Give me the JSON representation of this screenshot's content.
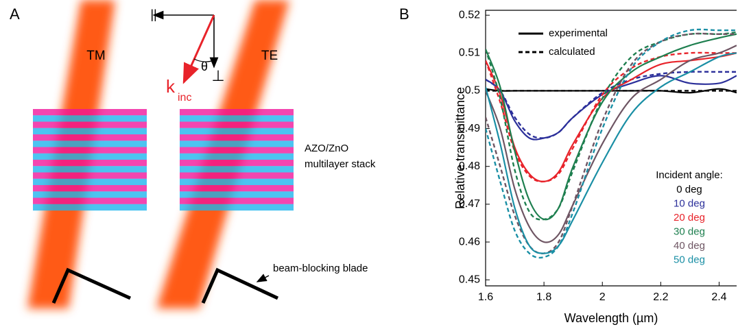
{
  "panel_a": {
    "label": "A",
    "beams": [
      "TM",
      "TE"
    ],
    "parallel": "||",
    "angle": "θ",
    "perpendicular": "⊥",
    "wavevector": "k",
    "wavevector_sub": "inc",
    "stack_label": [
      "AZO/ZnO",
      "multilayer stack"
    ],
    "blade_label": "beam-blocking blade"
  },
  "chart_data": {
    "type": "line",
    "panel_label": "B",
    "x_label": "Wavelength (µm)",
    "y_label": "Relative transmittance",
    "xlim": [
      1.6,
      2.46
    ],
    "xticks": [
      1.6,
      1.8,
      2,
      2.2,
      2.4
    ],
    "ylim": [
      0.4484,
      0.5213
    ],
    "yticks": [
      0.45,
      0.46,
      0.47,
      0.48,
      0.49,
      0.5,
      0.51,
      0.52
    ],
    "style_legend": [
      {
        "name": "experimental",
        "dashed": false
      },
      {
        "name": "calculated",
        "dashed": true
      }
    ],
    "legend_title": "Incident angle:",
    "x": [
      1.6,
      1.65,
      1.7,
      1.75,
      1.8,
      1.85,
      1.9,
      2.0,
      2.1,
      2.2,
      2.3,
      2.4,
      2.46
    ],
    "series": [
      {
        "name": "0 deg",
        "color": "#000000",
        "values": [
          0.5005,
          0.5,
          0.5,
          0.5,
          0.5,
          0.5,
          0.5,
          0.5,
          0.5,
          0.5,
          0.4995,
          0.5005,
          0.4995
        ],
        "calculated": [
          0.5,
          0.5,
          0.5,
          0.5,
          0.5,
          0.5,
          0.5,
          0.5,
          0.5,
          0.5,
          0.5,
          0.5,
          0.5
        ]
      },
      {
        "name": "10 deg",
        "color": "#2b2f9a",
        "values": [
          0.503,
          0.5,
          0.492,
          0.4875,
          0.4875,
          0.489,
          0.493,
          0.499,
          0.502,
          0.504,
          0.502,
          0.502,
          0.504
        ],
        "calculated": [
          0.503,
          0.5,
          0.493,
          0.4885,
          0.4875,
          0.489,
          0.493,
          0.4995,
          0.503,
          0.5045,
          0.505,
          0.505,
          0.505
        ]
      },
      {
        "name": "20 deg",
        "color": "#e8232a",
        "values": [
          0.508,
          0.499,
          0.485,
          0.478,
          0.476,
          0.4785,
          0.486,
          0.498,
          0.503,
          0.507,
          0.508,
          0.509,
          0.51
        ],
        "calculated": [
          0.508,
          0.497,
          0.484,
          0.4775,
          0.476,
          0.478,
          0.485,
          0.499,
          0.506,
          0.509,
          0.51,
          0.51,
          0.51
        ]
      },
      {
        "name": "30 deg",
        "color": "#1e7f4f",
        "values": [
          0.511,
          0.501,
          0.484,
          0.471,
          0.466,
          0.469,
          0.48,
          0.497,
          0.505,
          0.509,
          0.512,
          0.514,
          0.515
        ],
        "calculated": [
          0.511,
          0.498,
          0.479,
          0.468,
          0.466,
          0.469,
          0.479,
          0.498,
          0.509,
          0.513,
          0.515,
          0.515,
          0.5155
        ]
      },
      {
        "name": "40 deg",
        "color": "#6e5563",
        "values": [
          0.5,
          0.49,
          0.474,
          0.464,
          0.46,
          0.462,
          0.47,
          0.486,
          0.498,
          0.503,
          0.508,
          0.51,
          0.512
        ],
        "calculated": [
          0.493,
          0.48,
          0.467,
          0.459,
          0.457,
          0.46,
          0.47,
          0.492,
          0.507,
          0.513,
          0.515,
          0.515,
          0.515
        ]
      },
      {
        "name": "50 deg",
        "color": "#1a8fa5",
        "values": [
          0.501,
          0.486,
          0.469,
          0.459,
          0.457,
          0.459,
          0.466,
          0.481,
          0.494,
          0.501,
          0.505,
          0.509,
          0.51
        ],
        "calculated": [
          0.49,
          0.476,
          0.463,
          0.457,
          0.456,
          0.459,
          0.468,
          0.49,
          0.506,
          0.513,
          0.516,
          0.516,
          0.516
        ]
      }
    ]
  }
}
